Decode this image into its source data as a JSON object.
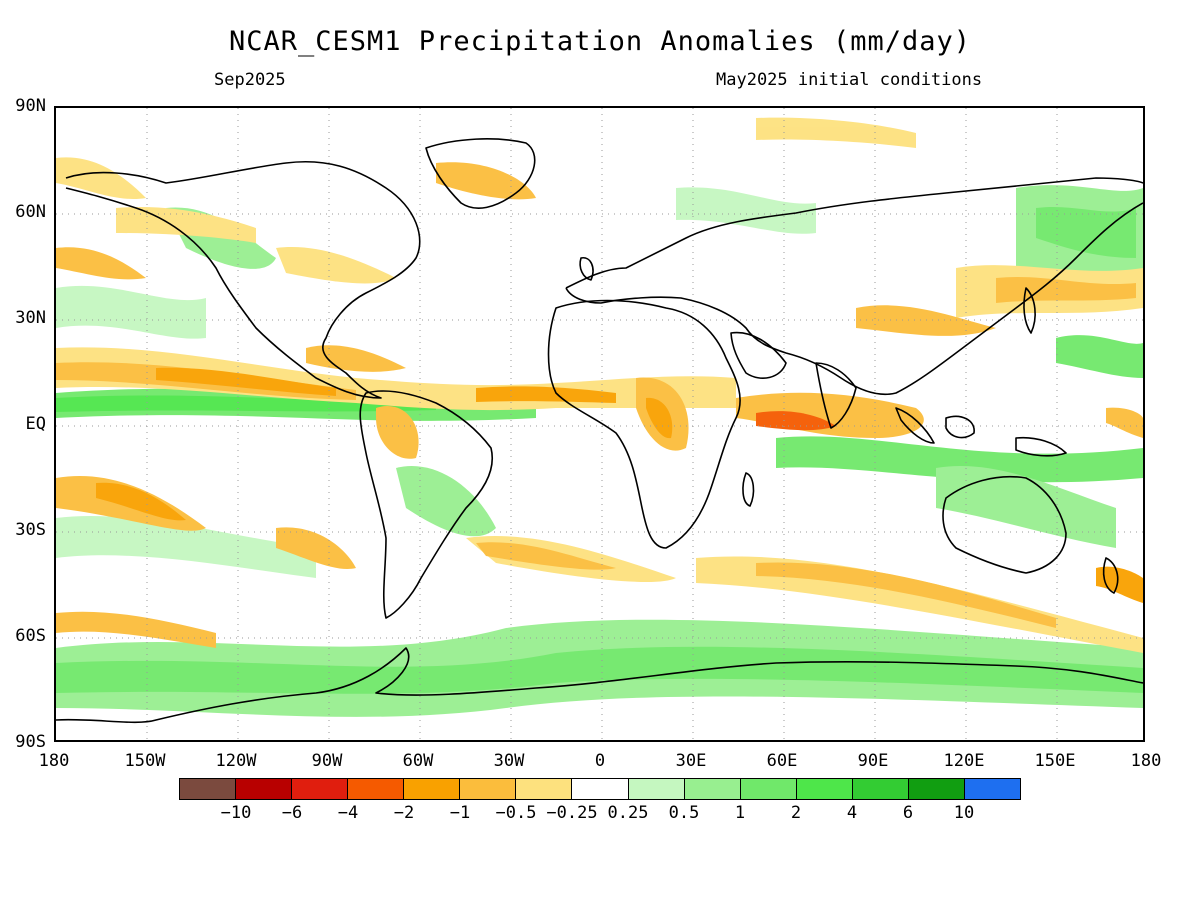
{
  "title": "NCAR_CESM1 Precipitation Anomalies (mm/day)",
  "valid_month": "Sep2025",
  "init_conditions": "May2025 initial conditions",
  "lat_ticks": [
    "90N",
    "60N",
    "30N",
    "EQ",
    "30S",
    "60S",
    "90S"
  ],
  "lon_ticks": [
    "180",
    "150W",
    "120W",
    "90W",
    "60W",
    "30W",
    "0",
    "30E",
    "60E",
    "90E",
    "120E",
    "150E",
    "180"
  ],
  "colorbar": {
    "colors": [
      "#7b4a3e",
      "#b80000",
      "#e01e0e",
      "#f55a00",
      "#f9a100",
      "#fbbd3c",
      "#fde17e",
      "#ffffff",
      "#c5f7c0",
      "#98ef90",
      "#70e86a",
      "#4ee64a",
      "#33cc33",
      "#119e11",
      "#1e6ff0"
    ],
    "labels": [
      "−10",
      "−6",
      "−4",
      "−2",
      "−1",
      "−0.5",
      "−0.25",
      "0.25",
      "0.5",
      "1",
      "2",
      "4",
      "6",
      "10"
    ]
  }
}
